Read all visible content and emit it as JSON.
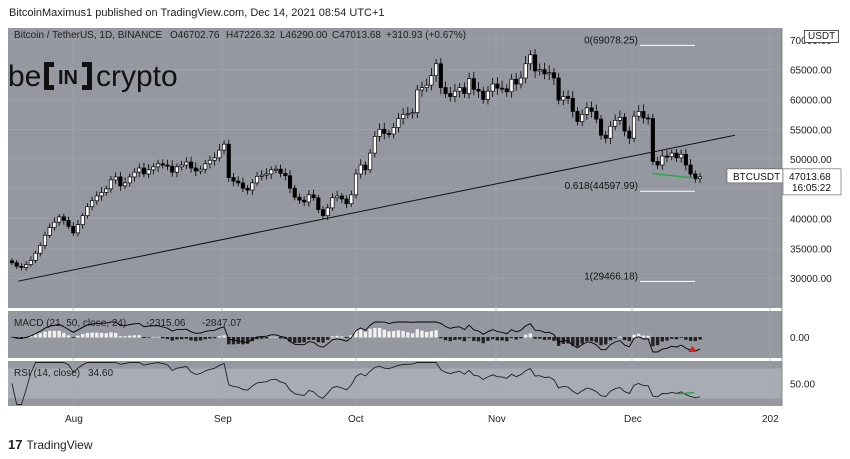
{
  "header": {
    "publish_line": "BitcoinMaximus1 published on TradingView.com, Dec 14, 2021 08:54 UTC+1"
  },
  "footer": {
    "brand": "TradingView"
  },
  "watermark": {
    "text": "be[in]crypto"
  },
  "chart_data": [
    {
      "type": "candlestick",
      "title": "Bitcoin / TetherUS, 1D, BINANCE",
      "ohlc_readout": {
        "O": "46702.76",
        "H": "47226.32",
        "L": "46290.00",
        "C": "47013.68",
        "change": "+310.93 (+0.67%)"
      },
      "currency_label": "USDT",
      "price_ticks": [
        70000,
        65000,
        60000,
        55000,
        50000,
        45000,
        40000,
        35000,
        30000
      ],
      "ylim": [
        25000,
        72000
      ],
      "x_ticks": [
        "Aug",
        "Sep",
        "Oct",
        "Nov",
        "Dec",
        "202"
      ],
      "last_price": {
        "symbol": "BTCUSDT",
        "value": "47013.68",
        "countdown": "16:05:22"
      },
      "fib_levels": [
        {
          "label": "0(69078.25)",
          "value": 69078.25
        },
        {
          "label": "0.618(44597.99)",
          "value": 44597.99
        },
        {
          "label": "1(29466.18)",
          "value": 29466.18
        }
      ],
      "trendline": {
        "from": {
          "date": "2021-07-20",
          "price": 29500
        },
        "to": {
          "date": "2021-12-20",
          "price": 54000
        }
      },
      "closes": [
        32600,
        32000,
        31800,
        32300,
        33000,
        34200,
        35500,
        37200,
        38500,
        39400,
        40300,
        39700,
        38700,
        37600,
        39000,
        40500,
        42000,
        43000,
        43800,
        44400,
        45000,
        46500,
        47000,
        45500,
        46000,
        47000,
        47800,
        48500,
        47500,
        48200,
        48700,
        49200,
        49000,
        48800,
        47800,
        48700,
        49000,
        49500,
        48500,
        48000,
        48300,
        49200,
        49800,
        50200,
        51500,
        52500,
        46900,
        46300,
        46000,
        45100,
        44800,
        46000,
        47100,
        47300,
        47500,
        48200,
        48300,
        47600,
        47200,
        45100,
        43600,
        43100,
        42800,
        44000,
        43500,
        41500,
        40500,
        41800,
        43500,
        43800,
        43300,
        42500,
        44000,
        47500,
        49000,
        48200,
        51000,
        53800,
        55000,
        54300,
        54200,
        55300,
        56800,
        57500,
        57600,
        57800,
        61600,
        62000,
        62400,
        64000,
        66000,
        62000,
        61000,
        60500,
        61400,
        62000,
        61000,
        63500,
        61700,
        61400,
        60000,
        61400,
        62600,
        61900,
        61800,
        61300,
        63400,
        62600,
        63600,
        66000,
        67500,
        64800,
        65000,
        64300,
        64500,
        63600,
        59900,
        60500,
        60200,
        58000,
        56300,
        57500,
        58600,
        58000,
        56700,
        54000,
        53500,
        55500,
        56500,
        57000,
        54700,
        53500,
        57200,
        58000,
        56900,
        56800,
        49600,
        49000,
        50500,
        50400,
        51000,
        50200,
        50800,
        49000,
        47500,
        46700,
        47013.68
      ],
      "rsi": {
        "label": "RSI (14, close)",
        "value": "34.60",
        "ticks": [
          50.0
        ],
        "band": [
          30,
          70
        ]
      },
      "macd": {
        "label": "MACD (21, 50, close, 24)",
        "macd_value": "-2315.06",
        "signal_value": "-2847.07",
        "ticks": [
          0.0
        ]
      }
    }
  ]
}
